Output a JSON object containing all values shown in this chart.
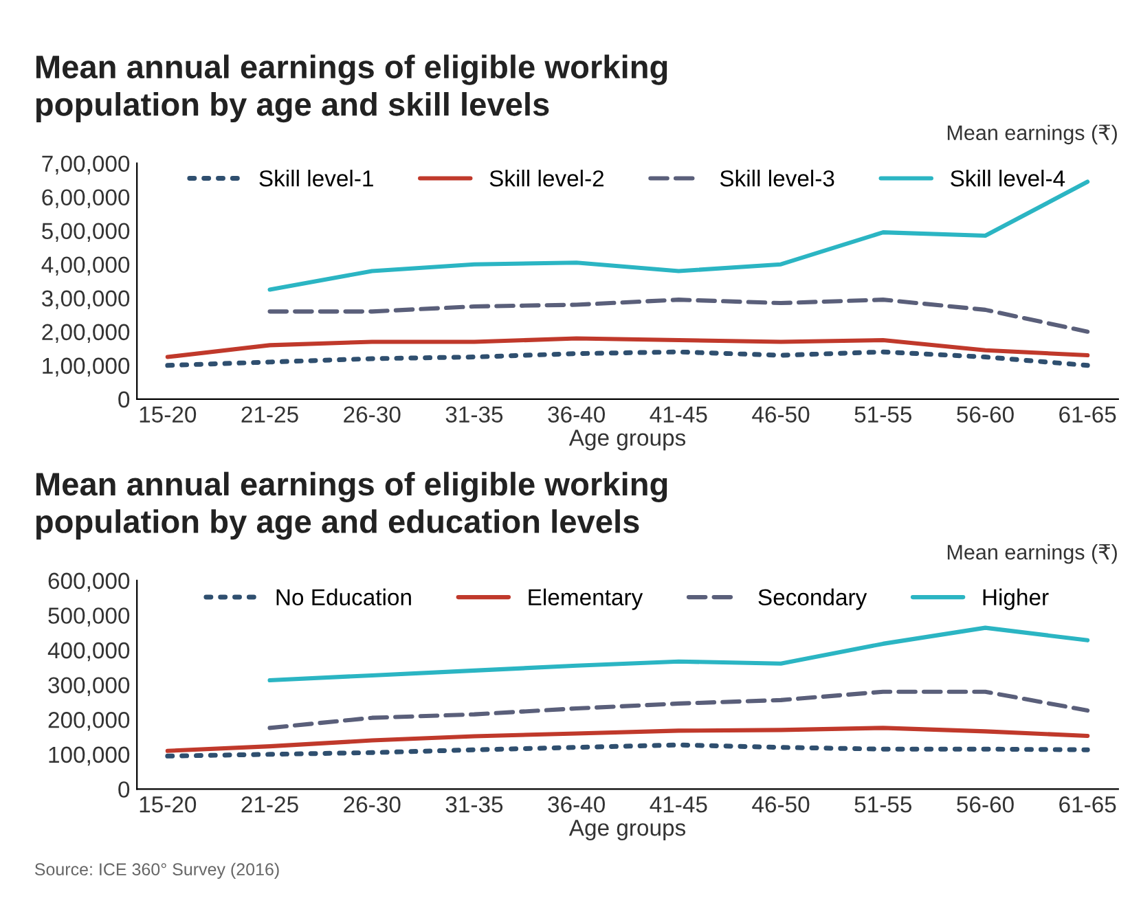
{
  "chart_data": [
    {
      "type": "line",
      "title": "Mean annual earnings of eligible working\npopulation by age and skill levels",
      "ylabel": "Mean earnings (₹)",
      "xlabel": "Age groups",
      "categories": [
        "15-20",
        "21-25",
        "26-30",
        "31-35",
        "36-40",
        "41-45",
        "46-50",
        "51-55",
        "56-60",
        "61-65"
      ],
      "series": [
        {
          "name": "Skill level-1",
          "color": "#2f4f6f",
          "line_style": "dotted",
          "values": [
            100000,
            110000,
            120000,
            125000,
            135000,
            140000,
            130000,
            140000,
            125000,
            100000
          ]
        },
        {
          "name": "Skill level-2",
          "color": "#c0392b",
          "line_style": "solid",
          "values": [
            125000,
            160000,
            170000,
            170000,
            180000,
            175000,
            170000,
            175000,
            145000,
            130000
          ]
        },
        {
          "name": "Skill level-3",
          "color": "#5a5f7a",
          "line_style": "dashed",
          "values": [
            null,
            260000,
            260000,
            275000,
            280000,
            295000,
            285000,
            295000,
            265000,
            200000
          ]
        },
        {
          "name": "Skill level-4",
          "color": "#2bb5c3",
          "line_style": "solid",
          "values": [
            null,
            325000,
            380000,
            400000,
            405000,
            380000,
            400000,
            495000,
            485000,
            645000
          ]
        }
      ],
      "ylim": [
        0,
        700000
      ],
      "yticks": [
        {
          "value": 0,
          "label": "0"
        },
        {
          "value": 100000,
          "label": "1,00,000"
        },
        {
          "value": 200000,
          "label": "2,00,000"
        },
        {
          "value": 300000,
          "label": "3,00,000"
        },
        {
          "value": 400000,
          "label": "4,00,000"
        },
        {
          "value": 500000,
          "label": "5,00,000"
        },
        {
          "value": 600000,
          "label": "6,00,000"
        },
        {
          "value": 700000,
          "label": "7,00,000"
        }
      ],
      "legend": "top",
      "grid": false
    },
    {
      "type": "line",
      "title": "Mean annual earnings of eligible working\npopulation by age and education levels",
      "ylabel": "Mean earnings (₹)",
      "xlabel": "Age groups",
      "categories": [
        "15-20",
        "21-25",
        "26-30",
        "31-35",
        "36-40",
        "41-45",
        "46-50",
        "51-55",
        "56-60",
        "61-65"
      ],
      "series": [
        {
          "name": "No Education",
          "color": "#2f4f6f",
          "line_style": "dotted",
          "values": [
            95000,
            100000,
            105000,
            113000,
            120000,
            127000,
            120000,
            115000,
            115000,
            113000
          ]
        },
        {
          "name": "Elementary",
          "color": "#c0392b",
          "line_style": "solid",
          "values": [
            110000,
            123000,
            140000,
            152000,
            160000,
            168000,
            170000,
            176000,
            166000,
            153000
          ]
        },
        {
          "name": "Secondary",
          "color": "#5a5f7a",
          "line_style": "dashed",
          "values": [
            null,
            176000,
            205000,
            215000,
            232000,
            246000,
            256000,
            280000,
            280000,
            226000
          ]
        },
        {
          "name": "Higher",
          "color": "#2bb5c3",
          "line_style": "solid",
          "values": [
            null,
            313000,
            327000,
            341000,
            355000,
            367000,
            361000,
            418000,
            464000,
            428000
          ]
        }
      ],
      "ylim": [
        0,
        600000
      ],
      "yticks": [
        {
          "value": 0,
          "label": "0"
        },
        {
          "value": 100000,
          "label": "100,000"
        },
        {
          "value": 200000,
          "label": "200,000"
        },
        {
          "value": 300000,
          "label": "300,000"
        },
        {
          "value": 400000,
          "label": "400,000"
        },
        {
          "value": 500000,
          "label": "500,000"
        },
        {
          "value": 600000,
          "label": "600,000"
        }
      ],
      "legend": "top",
      "grid": false,
      "annotations": [
        "Source: ICE 360° Survey (2016)"
      ]
    }
  ]
}
